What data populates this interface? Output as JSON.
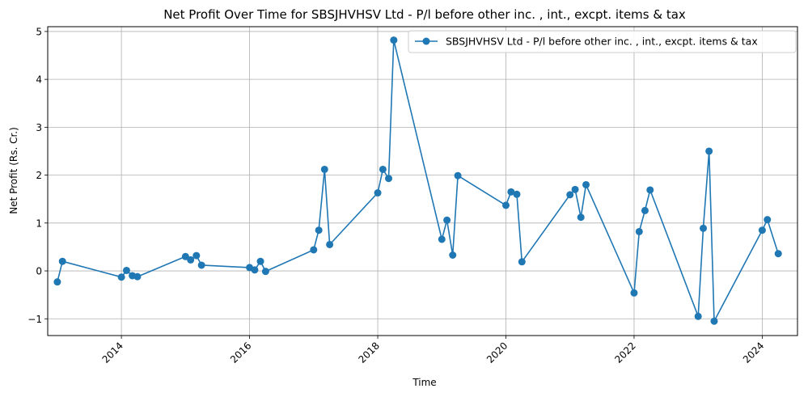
{
  "chart_data": {
    "type": "line",
    "title": "Net Profit Over Time for SBSJHVHSV Ltd - P/l before other inc. , int., excpt. items & tax",
    "xlabel": "Time",
    "ylabel": "Net Profit (Rs. Cr.)",
    "xlim": [
      2012.85,
      2024.55
    ],
    "ylim": [
      -1.35,
      5.1
    ],
    "x_ticks": [
      2014,
      2016,
      2018,
      2020,
      2022,
      2024
    ],
    "x_tick_labels": [
      "2014",
      "2016",
      "2018",
      "2020",
      "2022",
      "2024"
    ],
    "y_ticks": [
      -1,
      0,
      1,
      2,
      3,
      4,
      5
    ],
    "y_tick_labels": [
      "−1",
      "0",
      "1",
      "2",
      "3",
      "4",
      "5"
    ],
    "grid": true,
    "legend_position": "top-right",
    "color": "#1f77b4",
    "series": [
      {
        "name": "SBSJHVHSV Ltd - P/l before other inc. , int., excpt. items & tax",
        "x": [
          2013.0,
          2013.08,
          2014.0,
          2014.08,
          2014.17,
          2014.25,
          2015.0,
          2015.08,
          2015.17,
          2015.25,
          2016.0,
          2016.08,
          2016.17,
          2016.25,
          2017.0,
          2017.08,
          2017.17,
          2017.25,
          2018.0,
          2018.08,
          2018.17,
          2018.25,
          2019.0,
          2019.08,
          2019.17,
          2019.25,
          2020.0,
          2020.08,
          2020.17,
          2020.25,
          2021.0,
          2021.08,
          2021.17,
          2021.25,
          2022.0,
          2022.08,
          2022.17,
          2022.25,
          2023.0,
          2023.08,
          2023.17,
          2023.25,
          2024.0,
          2024.08,
          2024.25
        ],
        "y": [
          -0.23,
          0.2,
          -0.13,
          0.01,
          -0.1,
          -0.12,
          0.3,
          0.23,
          0.32,
          0.12,
          0.07,
          0.02,
          0.2,
          -0.01,
          0.44,
          0.85,
          2.12,
          0.55,
          1.63,
          2.12,
          1.93,
          4.82,
          0.66,
          1.06,
          0.33,
          1.99,
          1.37,
          1.65,
          1.6,
          0.19,
          1.59,
          1.7,
          1.12,
          1.8,
          -0.46,
          0.82,
          1.26,
          1.69,
          -0.95,
          0.89,
          2.5,
          -1.05,
          0.85,
          1.07,
          0.36
        ]
      }
    ]
  }
}
